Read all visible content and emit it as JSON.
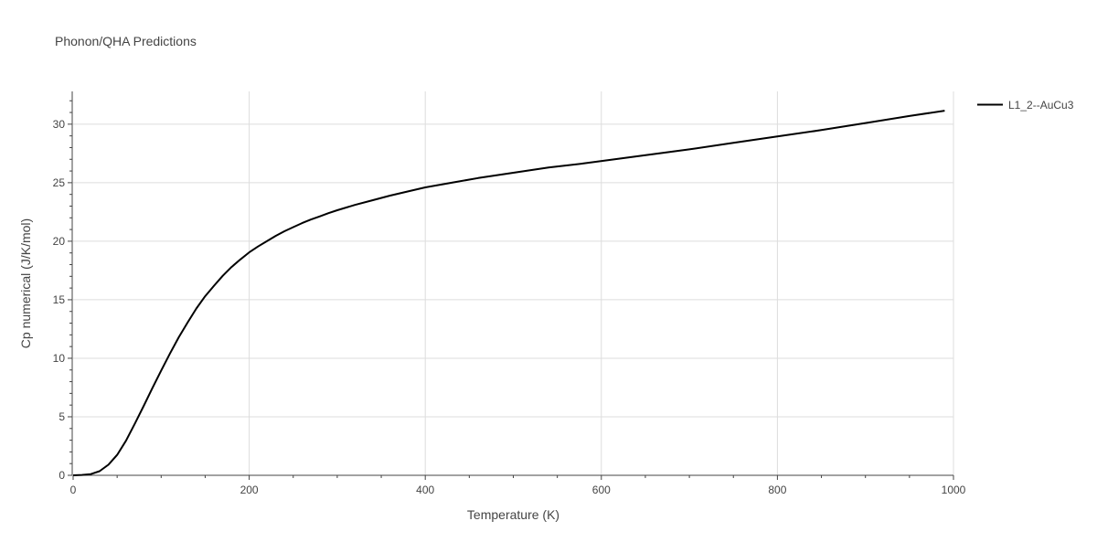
{
  "chart_data": {
    "type": "line",
    "title": "Phonon/QHA Predictions",
    "xlabel": "Temperature (K)",
    "ylabel": "Cp numerical (J/K/mol)",
    "xlim": [
      0,
      1000
    ],
    "ylim": [
      0,
      32.8
    ],
    "xticks": [
      0,
      200,
      400,
      600,
      800,
      1000
    ],
    "yticks": [
      0,
      5,
      10,
      15,
      20,
      25,
      30
    ],
    "x_tick_labels": [
      "0",
      "200",
      "400",
      "600",
      "800",
      "1000"
    ],
    "y_tick_labels": [
      "0",
      "5",
      "10",
      "15",
      "20",
      "25",
      "30"
    ],
    "grid": true,
    "legend_position": "top-right",
    "series": [
      {
        "name": "L1_2--AuCu3",
        "color": "#000000",
        "x": [
          0,
          10,
          20,
          30,
          40,
          50,
          60,
          70,
          80,
          90,
          100,
          110,
          120,
          130,
          140,
          150,
          160,
          170,
          180,
          190,
          200,
          210,
          220,
          230,
          240,
          250,
          260,
          270,
          280,
          290,
          300,
          320,
          340,
          360,
          380,
          400,
          430,
          460,
          500,
          540,
          580,
          620,
          660,
          700,
          750,
          800,
          850,
          900,
          950,
          990
        ],
        "y": [
          0,
          0.03,
          0.1,
          0.35,
          0.9,
          1.75,
          2.95,
          4.4,
          5.9,
          7.45,
          8.95,
          10.4,
          11.8,
          13.05,
          14.25,
          15.3,
          16.2,
          17.05,
          17.8,
          18.45,
          19.05,
          19.55,
          20.0,
          20.45,
          20.85,
          21.2,
          21.55,
          21.85,
          22.12,
          22.4,
          22.65,
          23.1,
          23.5,
          23.9,
          24.25,
          24.6,
          25.0,
          25.4,
          25.85,
          26.3,
          26.65,
          27.05,
          27.45,
          27.85,
          28.4,
          28.95,
          29.5,
          30.1,
          30.7,
          31.15
        ]
      }
    ]
  }
}
